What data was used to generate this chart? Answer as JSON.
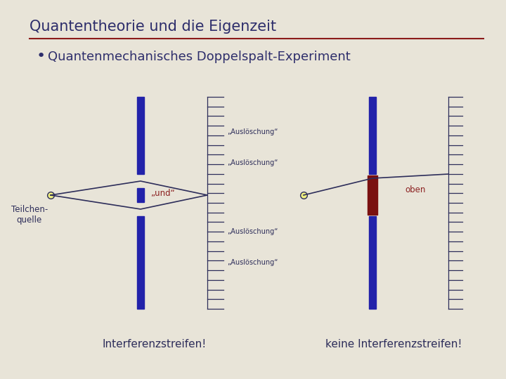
{
  "bg_color": "#e8e4d8",
  "title": "Quantentheorie und die Eigenzeit",
  "title_color": "#2d2d6b",
  "title_fontsize": 15,
  "separator_color": "#8b1a1a",
  "bullet_text": "Quantenmechanisches Doppelspalt-Experiment",
  "bullet_color": "#2d2d6b",
  "bullet_fontsize": 13,
  "dark_blue": "#2222aa",
  "dark_navy": "#2d2d5a",
  "dark_red": "#7a1010",
  "und_color": "#8b2020",
  "oben_color": "#8b2020",
  "interferenz_text": "Interferenzstreifen!",
  "keine_interferenz_text": "keine Interferenzstreifen!",
  "ausloesch_label": "„Auslöschung“",
  "und_label": "„und“",
  "oben_label": "oben",
  "teilchen_label": "Teilchen-\nquelle"
}
